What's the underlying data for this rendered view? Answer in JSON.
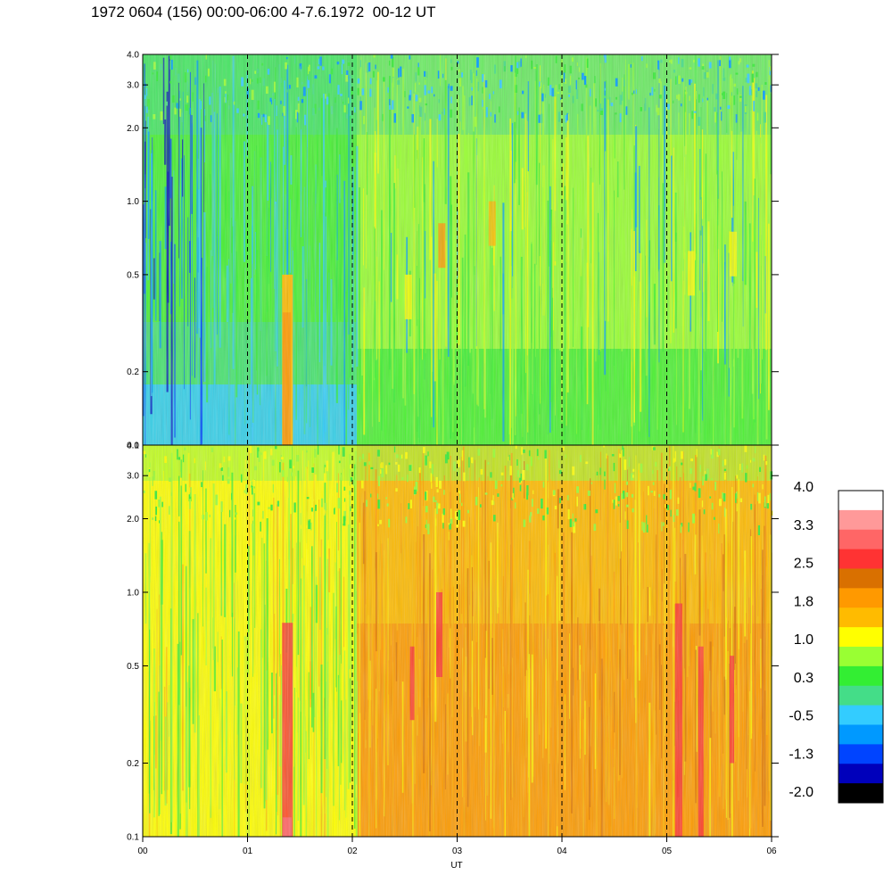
{
  "title": "1972 0604 (156) 00:00-06:00 4-7.6.1972  00-12 UT",
  "chart_data": {
    "type": "heatmap",
    "xlabel": "UT",
    "x_ticks": [
      "00",
      "01",
      "02",
      "03",
      "04",
      "05",
      "06"
    ],
    "xlim": [
      0,
      6
    ],
    "y_scale": "log",
    "ylim": [
      0.1,
      4.0
    ],
    "y_ticks": [
      "0.1",
      "0.2",
      "0.5",
      "1.0",
      "2.0",
      "3.0",
      "4.0"
    ],
    "y_tick_values": [
      0.1,
      0.2,
      0.5,
      1.0,
      2.0,
      3.0,
      4.0
    ],
    "vertical_dashed_lines_at": [
      1,
      2,
      3,
      4,
      5
    ],
    "panels": [
      {
        "name": "upper",
        "dominant_levels": "0.3 to 1.0",
        "features": "blue streaks near 00 UT, orange/red band near 01:20 UT"
      },
      {
        "name": "lower",
        "dominant_levels": "1.0 to 1.8",
        "features": "red streaks near 01:20, 02:50 and 05:05 UT"
      }
    ],
    "colorbar": {
      "labels": [
        "4.0",
        "3.3",
        "2.5",
        "1.8",
        "1.0",
        "0.3",
        "-0.5",
        "-1.3",
        "-2.0"
      ],
      "colors": [
        "#ffffff",
        "#ff9999",
        "#ff6666",
        "#ff3333",
        "#d97000",
        "#ff9900",
        "#ffbb00",
        "#ffff00",
        "#99ff33",
        "#33ee33",
        "#44dd88",
        "#33ccff",
        "#0099ff",
        "#0044ff",
        "#0000bb",
        "#000000"
      ]
    }
  }
}
